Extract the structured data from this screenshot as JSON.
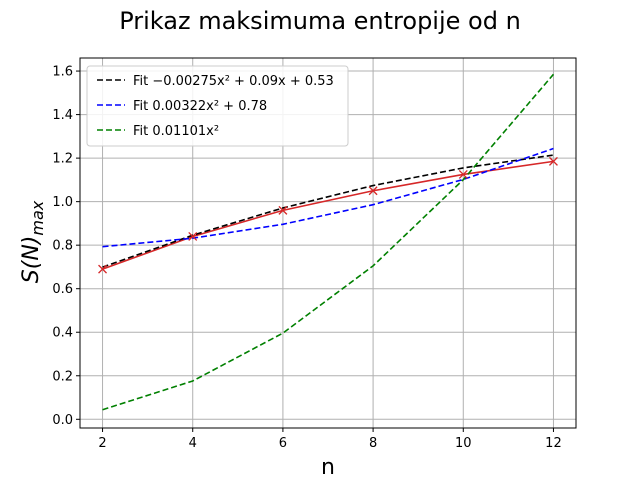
{
  "chart_data": {
    "type": "line",
    "title": "Prikaz maksimuma entropije od n",
    "xlabel": "n",
    "ylabel": "S(N)max",
    "xlim": [
      1.5,
      12.5
    ],
    "ylim": [
      -0.04,
      1.66
    ],
    "xticks": [
      "2",
      "4",
      "6",
      "8",
      "10",
      "12"
    ],
    "yticks": [
      "0.0",
      "0.2",
      "0.4",
      "0.6",
      "0.8",
      "1.0",
      "1.2",
      "1.4",
      "1.6"
    ],
    "grid": true,
    "legend_position": "upper-left",
    "x": [
      2,
      4,
      6,
      8,
      10,
      12
    ],
    "data_points": {
      "marker": "x",
      "color": "#d62728",
      "values": [
        0.69,
        0.84,
        0.96,
        1.05,
        1.125,
        1.185
      ]
    },
    "data_line_color": "#d62728",
    "series": [
      {
        "name": "Fit −0.00275x² + 0.09x + 0.53",
        "color": "#000000",
        "style": "dashed",
        "values": [
          0.699,
          0.846,
          0.971,
          1.074,
          1.155,
          1.214
        ]
      },
      {
        "name": "Fit 0.00322x² + 0.78",
        "color": "#0000ff",
        "style": "dashed",
        "values": [
          0.793,
          0.832,
          0.896,
          0.986,
          1.102,
          1.244
        ]
      },
      {
        "name": "Fit 0.01101x²",
        "color": "#008000",
        "style": "dashed",
        "values": [
          0.044,
          0.176,
          0.396,
          0.705,
          1.101,
          1.585
        ]
      }
    ]
  }
}
